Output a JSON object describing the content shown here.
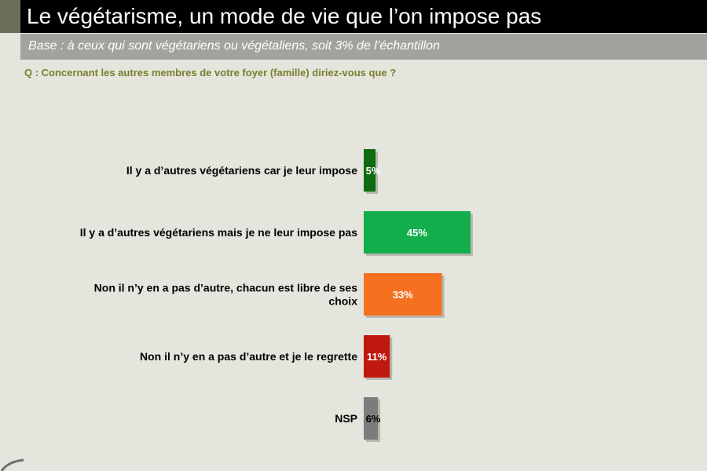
{
  "title": "Le végétarisme, un mode de vie que l’on impose pas",
  "subtitle": "Base : à ceux qui sont végétariens ou végétaliens, soit 3% de l’échantillon",
  "question": "Q : Concernant les autres membres de votre foyer (famille) diriez-vous que ?",
  "chart_data": {
    "type": "bar",
    "orientation": "horizontal",
    "categories": [
      [
        "Il y a d’autres végétariens car je leur impose"
      ],
      [
        "Il y a d’autres végétariens mais je ne leur impose pas"
      ],
      [
        "Non il n’y en a pas d’autre, chacun est libre de ses",
        "choix"
      ],
      [
        "Non il n’y en a pas d’autre et je le regrette"
      ],
      [
        "NSP"
      ]
    ],
    "values": [
      5,
      45,
      33,
      11,
      6
    ],
    "labels": [
      "5%",
      "45%",
      "33%",
      "11%",
      "6%"
    ],
    "colors": [
      "#0f6b10",
      "#13ae4c",
      "#f57120",
      "#c0180f",
      "#7c7c7c"
    ],
    "label_colors": [
      "#ffffff",
      "#ffffff",
      "#ffffff",
      "#ffffff",
      "#000000"
    ],
    "unit": "%",
    "grid": false,
    "legend": "none"
  }
}
